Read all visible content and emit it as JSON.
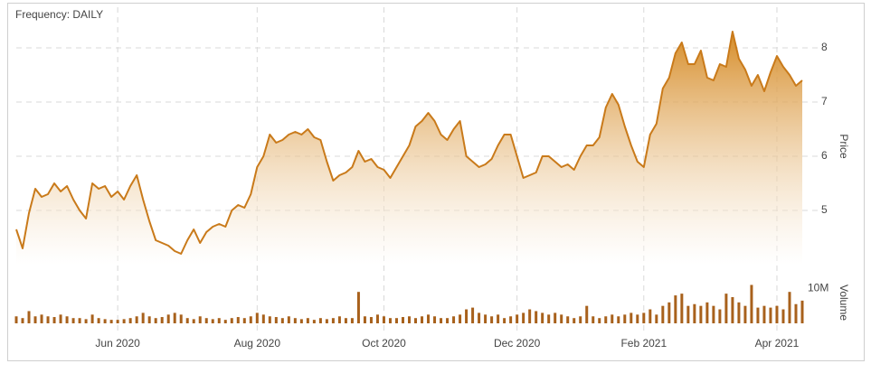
{
  "chart_data": {
    "type": "line",
    "frequency_label": "Frequency: DAILY",
    "categories": [
      null,
      null,
      null,
      null,
      null,
      null,
      null,
      null,
      null,
      null,
      null,
      null,
      null,
      null,
      null,
      null,
      "Jun 2020",
      null,
      null,
      null,
      null,
      null,
      null,
      null,
      null,
      null,
      null,
      null,
      null,
      null,
      null,
      null,
      null,
      null,
      null,
      null,
      null,
      null,
      "Aug 2020",
      null,
      null,
      null,
      null,
      null,
      null,
      null,
      null,
      null,
      null,
      null,
      null,
      null,
      null,
      null,
      null,
      null,
      null,
      null,
      "Oct 2020",
      null,
      null,
      null,
      null,
      null,
      null,
      null,
      null,
      null,
      null,
      null,
      null,
      null,
      null,
      null,
      null,
      null,
      null,
      null,
      null,
      "Dec 2020",
      null,
      null,
      null,
      null,
      null,
      null,
      null,
      null,
      null,
      null,
      null,
      null,
      null,
      null,
      null,
      null,
      null,
      null,
      null,
      "Feb 2021",
      null,
      null,
      null,
      null,
      null,
      null,
      null,
      null,
      null,
      null,
      null,
      null,
      null,
      null,
      null,
      null,
      null,
      null,
      null,
      null,
      "Apr 2021",
      null,
      null,
      null,
      null
    ],
    "series": [
      {
        "name": "Price",
        "color": "#c97a1a",
        "values": [
          4.65,
          4.3,
          4.95,
          5.4,
          5.25,
          5.3,
          5.5,
          5.35,
          5.45,
          5.2,
          5.0,
          4.85,
          5.5,
          5.4,
          5.45,
          5.25,
          5.35,
          5.2,
          5.45,
          5.65,
          5.2,
          4.8,
          4.45,
          4.4,
          4.35,
          4.25,
          4.2,
          4.45,
          4.65,
          4.4,
          4.6,
          4.7,
          4.75,
          4.7,
          5.0,
          5.1,
          5.05,
          5.3,
          5.8,
          6.0,
          6.4,
          6.25,
          6.3,
          6.4,
          6.45,
          6.4,
          6.5,
          6.35,
          6.3,
          5.9,
          5.55,
          5.65,
          5.7,
          5.8,
          6.1,
          5.9,
          5.95,
          5.8,
          5.75,
          5.6,
          5.8,
          6.0,
          6.2,
          6.55,
          6.65,
          6.8,
          6.65,
          6.4,
          6.3,
          6.5,
          6.65,
          6.0,
          5.9,
          5.8,
          5.85,
          5.95,
          6.2,
          6.4,
          6.4,
          6.0,
          5.6,
          5.65,
          5.7,
          6.0,
          6.0,
          5.9,
          5.8,
          5.85,
          5.75,
          6.0,
          6.2,
          6.2,
          6.35,
          6.9,
          7.15,
          6.95,
          6.55,
          6.2,
          5.9,
          5.8,
          6.4,
          6.6,
          7.25,
          7.45,
          7.9,
          8.1,
          7.7,
          7.7,
          7.95,
          7.45,
          7.4,
          7.7,
          7.65,
          8.3,
          7.8,
          7.6,
          7.3,
          7.5,
          7.2,
          7.55,
          7.85,
          7.65,
          7.5,
          7.3,
          7.4
        ]
      },
      {
        "name": "Volume",
        "color": "#a8611c",
        "axis": "y2",
        "type": "bar",
        "values": [
          2000000,
          1500000,
          3500000,
          2000000,
          2500000,
          2000000,
          1800000,
          2500000,
          2000000,
          1500000,
          1500000,
          1200000,
          2500000,
          1500000,
          1200000,
          1000000,
          1000000,
          1200000,
          1500000,
          2000000,
          3000000,
          2000000,
          1500000,
          1800000,
          2500000,
          3000000,
          2500000,
          1500000,
          1200000,
          2000000,
          1500000,
          1200000,
          1500000,
          1000000,
          1500000,
          1800000,
          1500000,
          2000000,
          3000000,
          2500000,
          2000000,
          1800000,
          1500000,
          2000000,
          1500000,
          1200000,
          1500000,
          1000000,
          1500000,
          1200000,
          1500000,
          2000000,
          1500000,
          1500000,
          9000000,
          2000000,
          1800000,
          2500000,
          2000000,
          1500000,
          1500000,
          1800000,
          2000000,
          1500000,
          2000000,
          2500000,
          2000000,
          1500000,
          1500000,
          2000000,
          2500000,
          4000000,
          4500000,
          3000000,
          2500000,
          2000000,
          2500000,
          1500000,
          2000000,
          2500000,
          3000000,
          4000000,
          3500000,
          3000000,
          2500000,
          3000000,
          2500000,
          2000000,
          1500000,
          2000000,
          5000000,
          2000000,
          1500000,
          2000000,
          2500000,
          2000000,
          2500000,
          3000000,
          2500000,
          3000000,
          4000000,
          2500000,
          5000000,
          6000000,
          8000000,
          8500000,
          5000000,
          5500000,
          5000000,
          6000000,
          5000000,
          4000000,
          8500000,
          7500000,
          6000000,
          5000000,
          11000000,
          4500000,
          5000000,
          4500000,
          5000000,
          4000000,
          9000000,
          5500000,
          6500000
        ]
      }
    ],
    "ylim": [
      4,
      8.4
    ],
    "yticks": [
      5,
      6,
      7,
      8
    ],
    "y2lim": [
      0,
      15000000
    ],
    "y2ticks": [
      {
        "value": 10000000,
        "label": "10M"
      }
    ],
    "grid": true
  }
}
